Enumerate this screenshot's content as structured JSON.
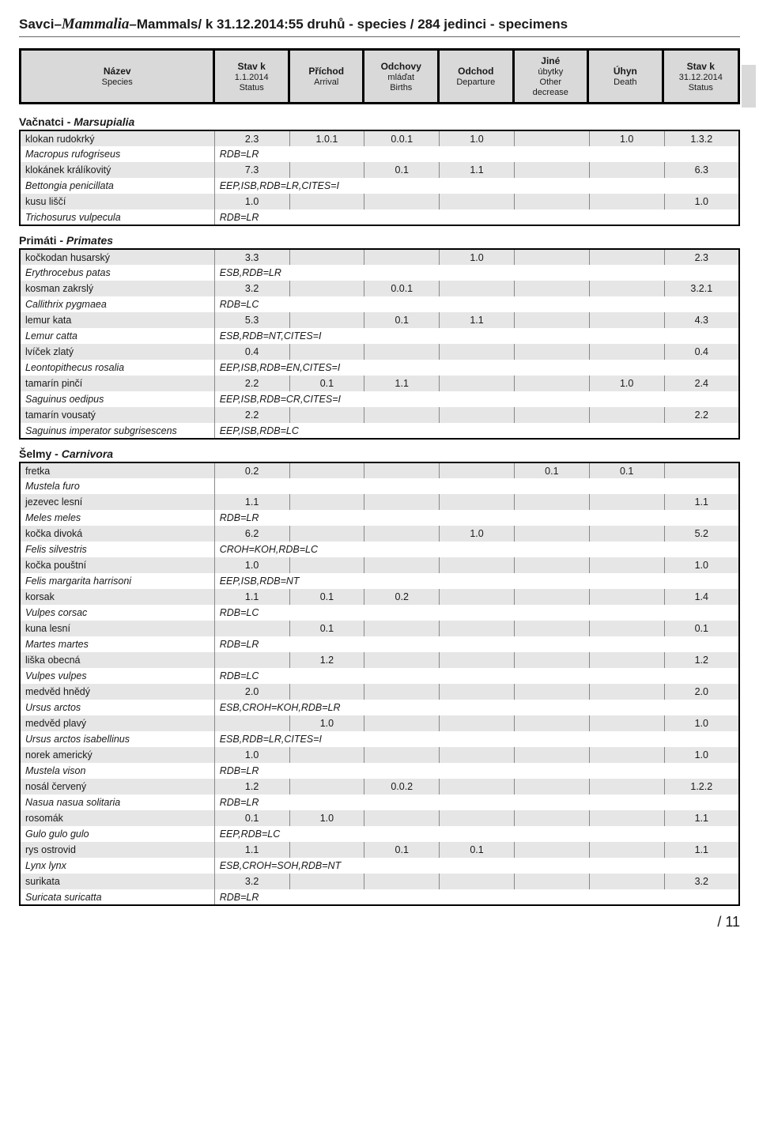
{
  "title": {
    "group_cs": "Savci",
    "sep1": " – ",
    "group_sci": "Mammalia",
    "sep2": " – ",
    "group_en": "Mammals",
    "date_part": " / k 31.12.2014:",
    "species_part": " 55 druhů - species / 284 jedinci - specimens"
  },
  "columns": {
    "c1": {
      "l1": "Název",
      "l2": "Species"
    },
    "c2": {
      "l1": "Stav k",
      "l2": "1.1.2014",
      "l3": "Status"
    },
    "c3": {
      "l1": "Příchod",
      "l2": "Arrival"
    },
    "c4": {
      "l1": "Odchovy",
      "l2": "mláďat",
      "l3": "Births"
    },
    "c5": {
      "l1": "Odchod",
      "l2": "Departure"
    },
    "c6": {
      "l1": "Jiné",
      "l2": "úbytky",
      "l3": "Other",
      "l4": "decrease"
    },
    "c7": {
      "l1": "Úhyn",
      "l2": "Death"
    },
    "c8": {
      "l1": "Stav k",
      "l2": "31.12.2014",
      "l3": "Status"
    }
  },
  "sections": [
    {
      "heading_cs": "Vačnatci",
      "heading_sci": "Marsupialia",
      "rows": [
        {
          "cs": "klokan rudokrký",
          "v": [
            "2.3",
            "1.0.1",
            "0.0.1",
            "1.0",
            "",
            "1.0",
            "1.3.2"
          ],
          "sci": "Macropus rufogriseus",
          "note": "RDB=LR"
        },
        {
          "cs": "klokánek králíkovitý",
          "v": [
            "7.3",
            "",
            "0.1",
            "1.1",
            "",
            "",
            "6.3"
          ],
          "sci": "Bettongia penicillata",
          "note": "EEP,ISB,RDB=LR,CITES=I"
        },
        {
          "cs": "kusu liščí",
          "v": [
            "1.0",
            "",
            "",
            "",
            "",
            "",
            "1.0"
          ],
          "sci": "Trichosurus vulpecula",
          "note": "RDB=LR"
        }
      ]
    },
    {
      "heading_cs": "Primáti",
      "heading_sci": "Primates",
      "rows": [
        {
          "cs": "kočkodan husarský",
          "v": [
            "3.3",
            "",
            "",
            "1.0",
            "",
            "",
            "2.3"
          ],
          "sci": "Erythrocebus patas",
          "note": "ESB,RDB=LR"
        },
        {
          "cs": "kosman zakrslý",
          "v": [
            "3.2",
            "",
            "0.0.1",
            "",
            "",
            "",
            "3.2.1"
          ],
          "sci": "Callithrix pygmaea",
          "note": "RDB=LC"
        },
        {
          "cs": "lemur kata",
          "v": [
            "5.3",
            "",
            "0.1",
            "1.1",
            "",
            "",
            "4.3"
          ],
          "sci": "Lemur catta",
          "note": "ESB,RDB=NT,CITES=I"
        },
        {
          "cs": "lvíček zlatý",
          "v": [
            "0.4",
            "",
            "",
            "",
            "",
            "",
            "0.4"
          ],
          "sci": "Leontopithecus rosalia",
          "note": "EEP,ISB,RDB=EN,CITES=I"
        },
        {
          "cs": "tamarín pinčí",
          "v": [
            "2.2",
            "0.1",
            "1.1",
            "",
            "",
            "1.0",
            "2.4"
          ],
          "sci": "Saguinus oedipus",
          "note": "EEP,ISB,RDB=CR,CITES=I"
        },
        {
          "cs": "tamarín vousatý",
          "v": [
            "2.2",
            "",
            "",
            "",
            "",
            "",
            "2.2"
          ],
          "sci": "Saguinus imperator subgrisescens",
          "note": "EEP,ISB,RDB=LC"
        }
      ]
    },
    {
      "heading_cs": "Šelmy",
      "heading_sci": "Carnivora",
      "rows": [
        {
          "cs": "fretka",
          "v": [
            "0.2",
            "",
            "",
            "",
            "0.1",
            "0.1",
            ""
          ],
          "sci": "Mustela furo",
          "note": ""
        },
        {
          "cs": "jezevec lesní",
          "v": [
            "1.1",
            "",
            "",
            "",
            "",
            "",
            "1.1"
          ],
          "sci": "Meles meles",
          "note": "RDB=LR"
        },
        {
          "cs": "kočka divoká",
          "v": [
            "6.2",
            "",
            "",
            "1.0",
            "",
            "",
            "5.2"
          ],
          "sci": "Felis silvestris",
          "note": "CROH=KOH,RDB=LC"
        },
        {
          "cs": "kočka pouštní",
          "v": [
            "1.0",
            "",
            "",
            "",
            "",
            "",
            "1.0"
          ],
          "sci": "Felis margarita harrisoni",
          "note": "EEP,ISB,RDB=NT"
        },
        {
          "cs": "korsak",
          "v": [
            "1.1",
            "0.1",
            "0.2",
            "",
            "",
            "",
            "1.4"
          ],
          "sci": "Vulpes corsac",
          "note": "RDB=LC"
        },
        {
          "cs": "kuna lesní",
          "v": [
            "",
            "0.1",
            "",
            "",
            "",
            "",
            "0.1"
          ],
          "sci": "Martes martes",
          "note": "RDB=LR"
        },
        {
          "cs": "liška obecná",
          "v": [
            "",
            "1.2",
            "",
            "",
            "",
            "",
            "1.2"
          ],
          "sci": "Vulpes vulpes",
          "note": "RDB=LC"
        },
        {
          "cs": "medvěd hnědý",
          "v": [
            "2.0",
            "",
            "",
            "",
            "",
            "",
            "2.0"
          ],
          "sci": "Ursus arctos",
          "note": "ESB,CROH=KOH,RDB=LR"
        },
        {
          "cs": "medvěd plavý",
          "v": [
            "",
            "1.0",
            "",
            "",
            "",
            "",
            "1.0"
          ],
          "sci": "Ursus arctos isabellinus",
          "note": "ESB,RDB=LR,CITES=I"
        },
        {
          "cs": "norek americký",
          "v": [
            "1.0",
            "",
            "",
            "",
            "",
            "",
            "1.0"
          ],
          "sci": "Mustela vison",
          "note": "RDB=LR"
        },
        {
          "cs": "nosál červený",
          "v": [
            "1.2",
            "",
            "0.0.2",
            "",
            "",
            "",
            "1.2.2"
          ],
          "sci": "Nasua nasua solitaria",
          "note": "RDB=LR"
        },
        {
          "cs": "rosomák",
          "v": [
            "0.1",
            "1.0",
            "",
            "",
            "",
            "",
            "1.1"
          ],
          "sci": "Gulo gulo gulo",
          "note": "EEP,RDB=LC"
        },
        {
          "cs": "rys ostrovid",
          "v": [
            "1.1",
            "",
            "0.1",
            "0.1",
            "",
            "",
            "1.1"
          ],
          "sci": "Lynx lynx",
          "note": "ESB,CROH=SOH,RDB=NT"
        },
        {
          "cs": "surikata",
          "v": [
            "3.2",
            "",
            "",
            "",
            "",
            "",
            "3.2"
          ],
          "sci": "Suricata suricatta",
          "note": "RDB=LR"
        }
      ]
    }
  ],
  "pager": "/ 11"
}
